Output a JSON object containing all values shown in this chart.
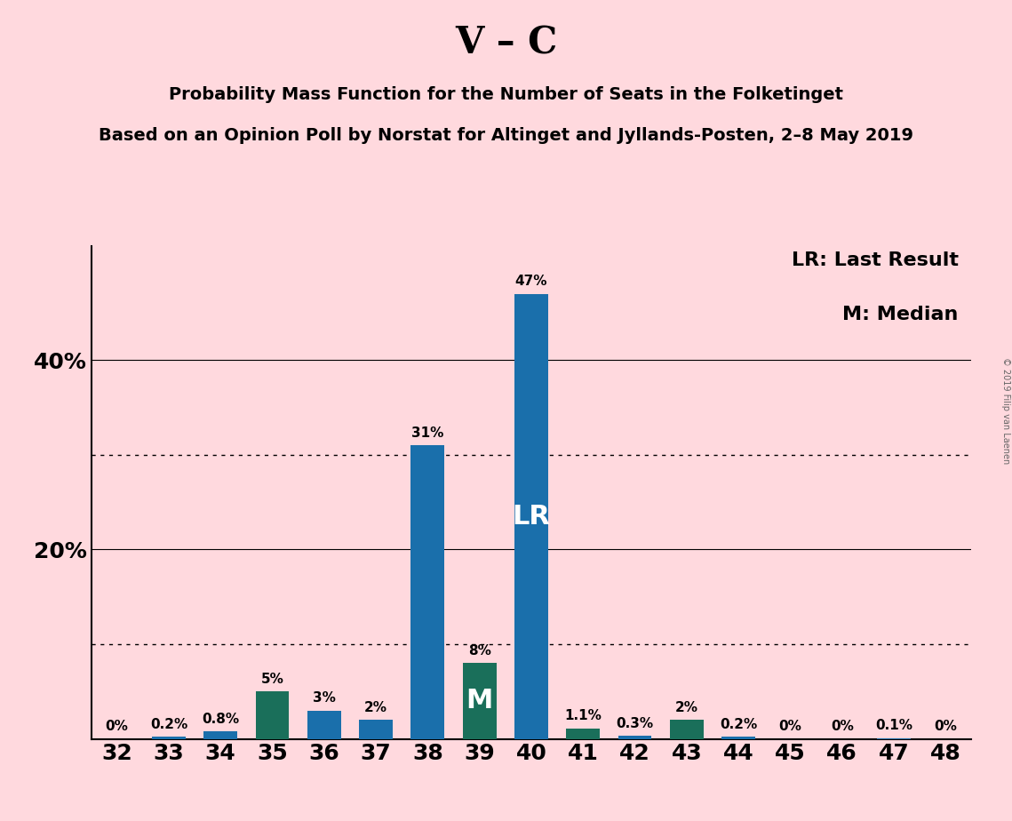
{
  "title": "V – C",
  "subtitle1": "Probability Mass Function for the Number of Seats in the Folketinget",
  "subtitle2": "Based on an Opinion Poll by Norstat for Altinget and Jyllands-Posten, 2–8 May 2019",
  "copyright": "© 2019 Filip van Laenen",
  "legend_lr": "LR: Last Result",
  "legend_m": "M: Median",
  "background_color": "#ffd9de",
  "bar_color_blue": "#1a6fab",
  "bar_color_green": "#1a6f5a",
  "seats": [
    32,
    33,
    34,
    35,
    36,
    37,
    38,
    39,
    40,
    41,
    42,
    43,
    44,
    45,
    46,
    47,
    48
  ],
  "values": [
    0.0,
    0.2,
    0.8,
    5.0,
    3.0,
    2.0,
    31.0,
    8.0,
    47.0,
    1.1,
    0.3,
    2.0,
    0.2,
    0.0,
    0.0,
    0.1,
    0.0
  ],
  "labels": [
    "0%",
    "0.2%",
    "0.8%",
    "5%",
    "3%",
    "2%",
    "31%",
    "8%",
    "47%",
    "1.1%",
    "0.3%",
    "2%",
    "0.2%",
    "0%",
    "0%",
    "0.1%",
    "0%"
  ],
  "bar_types": [
    "blue",
    "blue",
    "blue",
    "green",
    "blue",
    "blue",
    "blue",
    "green",
    "blue",
    "green",
    "blue",
    "green",
    "blue",
    "blue",
    "blue",
    "blue",
    "blue"
  ],
  "lr_seat": 40,
  "median_seat": 39,
  "lr_label": "LR",
  "median_label": "M",
  "ylim": [
    0,
    52
  ],
  "yticks": [
    20,
    40
  ],
  "ytick_labels": [
    "20%",
    "40%"
  ],
  "dotted_gridlines": [
    10,
    30
  ],
  "solid_gridlines": [
    20,
    40
  ]
}
